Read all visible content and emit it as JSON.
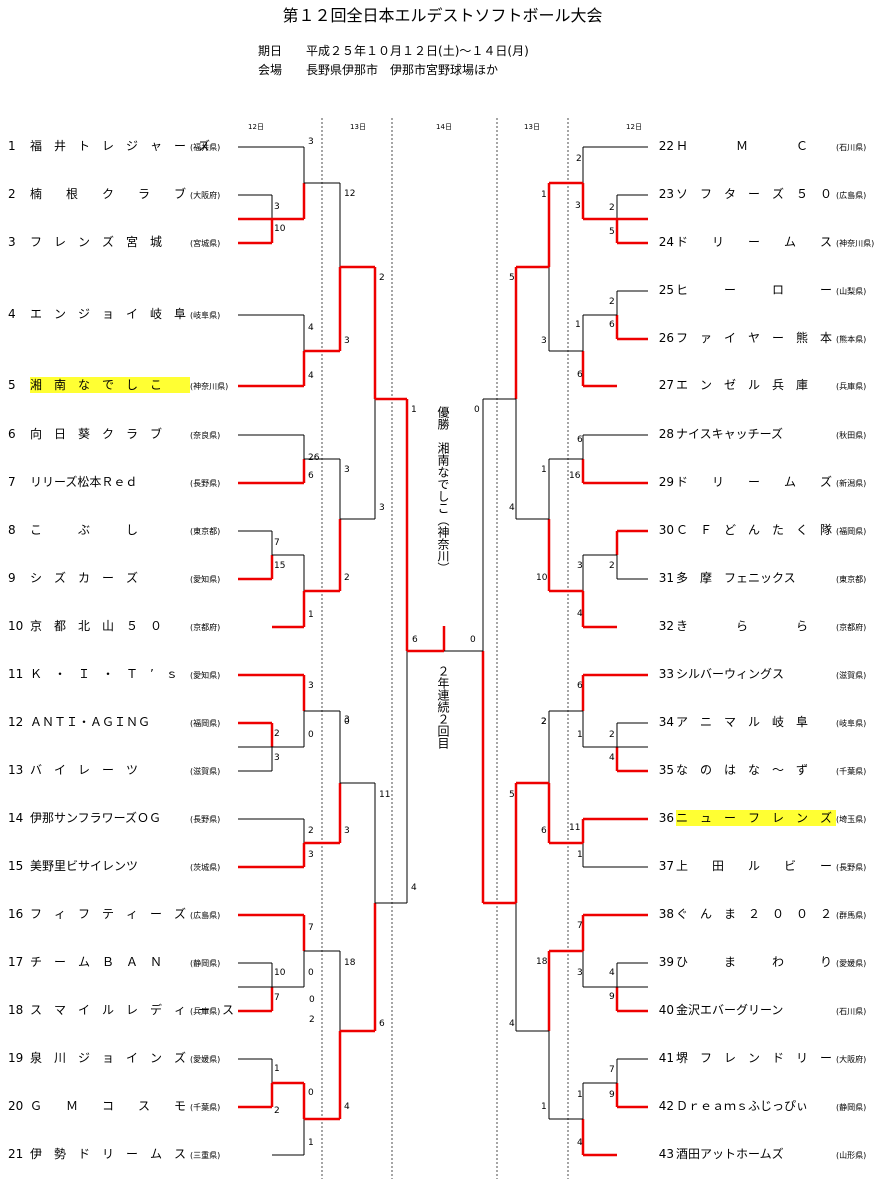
{
  "title": "第１２回全日本エルデストソフトボール大会",
  "info": [
    {
      "label": "期日",
      "value": "平成２５年１０月１２日(土)～１４日(月)"
    },
    {
      "label": "会場",
      "value": "長野県伊那市　伊那市宮野球場ほか"
    }
  ],
  "day_labels": [
    "12日",
    "13日",
    "14日",
    "13日",
    "12日"
  ],
  "champion_label": "優勝　湘南なでしこ（神奈川）",
  "note": "２年連続２回目",
  "left_teams": [
    {
      "num": "1",
      "name": "福　井　ト　レ　ジ　ャ　ー　ズ",
      "pref": "(福井県)"
    },
    {
      "num": "2",
      "name": "楠　　根　　ク　　ラ　　ブ",
      "pref": "(大阪府)"
    },
    {
      "num": "3",
      "name": "フ　レ　ン　ズ　宮　城",
      "pref": "(宮城県)"
    },
    {
      "num": "4",
      "name": "エ　ン　ジ　ョ　イ　岐　阜",
      "pref": "(岐阜県)"
    },
    {
      "num": "5",
      "name": "湘　南　な　で　し　こ",
      "pref": "(神奈川県)"
    },
    {
      "num": "6",
      "name": "向　日　葵　ク　ラ　ブ",
      "pref": "(奈良県)"
    },
    {
      "num": "7",
      "name": "リリーズ松本Ｒｅｄ",
      "pref": "(長野県)"
    },
    {
      "num": "8",
      "name": "こ　　　ぶ　　　し",
      "pref": "(東京都)"
    },
    {
      "num": "9",
      "name": "シ　ズ　カ　ー　ズ",
      "pref": "(愛知県)"
    },
    {
      "num": "10",
      "name": "京　都　北　山　５　０",
      "pref": "(京都府)"
    },
    {
      "num": "11",
      "name": "Ｋ　・　Ｉ　・　Ｔ　’　ｓ",
      "pref": "(愛知県)"
    },
    {
      "num": "12",
      "name": "ＡＮＴＩ・ＡＧＩＮＧ",
      "pref": "(福岡県)"
    },
    {
      "num": "13",
      "name": "バ　イ　レ　ー　ツ",
      "pref": "(滋賀県)"
    },
    {
      "num": "14",
      "name": "伊那サンフラワーズＯＧ",
      "pref": "(長野県)"
    },
    {
      "num": "15",
      "name": "美野里ビサイレンツ",
      "pref": "(茨城県)"
    },
    {
      "num": "16",
      "name": "フ　ィ　フ　テ　ィ　ー　ズ",
      "pref": "(広島県)"
    },
    {
      "num": "17",
      "name": "チ　ー　ム　Ｂ　Ａ　Ｎ",
      "pref": "(静岡県)"
    },
    {
      "num": "18",
      "name": "ス　マ　イ　ル　レ　デ　ィ　ー　ス",
      "pref": "(兵庫県)"
    },
    {
      "num": "19",
      "name": "泉　川　ジ　ョ　イ　ン　ズ",
      "pref": "(愛媛県)"
    },
    {
      "num": "20",
      "name": "Ｇ　　Ｍ　　コ　　ス　　モ",
      "pref": "(千葉県)"
    },
    {
      "num": "21",
      "name": "伊　勢　ド　リ　ー　ム　ス",
      "pref": "(三重県)"
    }
  ],
  "right_teams": [
    {
      "num": "22",
      "name": "Ｈ　　　　Ｍ　　　　Ｃ",
      "pref": "(石川県)"
    },
    {
      "num": "23",
      "name": "ソ　フ　タ　ー　ズ　５　０",
      "pref": "(広島県)"
    },
    {
      "num": "24",
      "name": "ド　　リ　　ー　　ム　　ス",
      "pref": "(神奈川県)"
    },
    {
      "num": "25",
      "name": "ヒ　　　ー　　　ロ　　　ー",
      "pref": "(山梨県)"
    },
    {
      "num": "26",
      "name": "フ　ァ　イ　ヤ　ー　熊　本",
      "pref": "(熊本県)"
    },
    {
      "num": "27",
      "name": "エ　ン　ゼ　ル　兵　庫",
      "pref": "(兵庫県)"
    },
    {
      "num": "28",
      "name": "ナイスキャッチーズ",
      "pref": "(秋田県)"
    },
    {
      "num": "29",
      "name": "ド　　リ　　ー　　ム　　ズ",
      "pref": "(新潟県)"
    },
    {
      "num": "30",
      "name": "Ｃ　Ｆ　ど　ん　た　く　隊",
      "pref": "(福岡県)"
    },
    {
      "num": "31",
      "name": "多　摩　フェニックス",
      "pref": "(東京都)"
    },
    {
      "num": "32",
      "name": "き　　　　ら　　　　ら",
      "pref": "(京都府)"
    },
    {
      "num": "33",
      "name": "シルバーウィングス",
      "pref": "(滋賀県)"
    },
    {
      "num": "34",
      "name": "ア　ニ　マ　ル　岐　阜",
      "pref": "(岐阜県)"
    },
    {
      "num": "35",
      "name": "な　の　は　な　～　ず",
      "pref": "(千葉県)"
    },
    {
      "num": "36",
      "name": "ニ　ュ　ー　フ　レ　ン　ズ",
      "pref": "(埼玉県)"
    },
    {
      "num": "37",
      "name": "上　　田　　ル　　ビ　　ー",
      "pref": "(長野県)"
    },
    {
      "num": "38",
      "name": "ぐ　ん　ま　２　０　０　２",
      "pref": "(群馬県)"
    },
    {
      "num": "39",
      "name": "ひ　　　ま　　　わ　　　り",
      "pref": "(愛媛県)"
    },
    {
      "num": "40",
      "name": "金沢エバーグリーン",
      "pref": "(石川県)"
    },
    {
      "num": "41",
      "name": "堺　フ　レ　ン　ド　リ　ー",
      "pref": "(大阪府)"
    },
    {
      "num": "42",
      "name": "Ｄｒｅａｍｓふじっぴぃ",
      "pref": "(静岡県)"
    },
    {
      "num": "43",
      "name": "酒田アットホームズ",
      "pref": "(山形県)"
    }
  ],
  "scores": {
    "left": [
      "3",
      "3",
      "10",
      "4",
      "4",
      "26",
      "6",
      "7",
      "15",
      "1",
      "3",
      "0",
      "2",
      "3",
      "2",
      "3",
      "7",
      "0",
      "10",
      "7",
      "0",
      "1",
      "2",
      "1",
      "12",
      "3",
      "3",
      "2",
      "0",
      "3",
      "18",
      "4",
      "2",
      "3",
      "11",
      "6",
      "1",
      "4",
      "6",
      "0",
      "3",
      "2",
      "0"
    ],
    "right": [
      "2",
      "1",
      "3",
      "2",
      "5",
      "5",
      "2",
      "6",
      "1",
      "3",
      "6",
      "6",
      "1",
      "16",
      "4",
      "3",
      "2",
      "10",
      "4",
      "0",
      "2",
      "6",
      "2",
      "4",
      "1",
      "2",
      "5",
      "11",
      "6",
      "1",
      "7",
      "4",
      "3",
      "9",
      "18",
      "4",
      "7",
      "9",
      "1",
      "4",
      "1"
    ]
  }
}
